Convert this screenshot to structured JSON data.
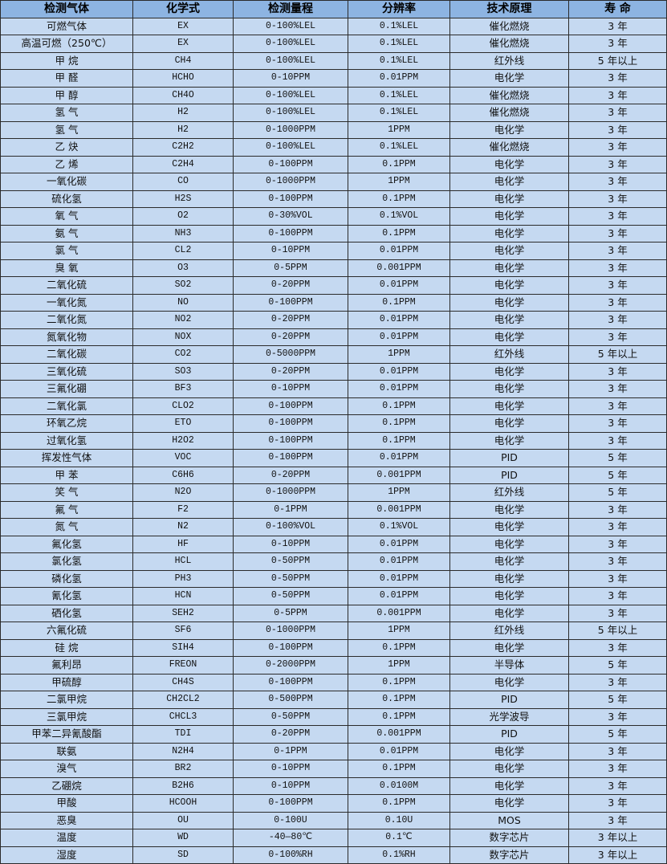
{
  "colors": {
    "header_bg": "#8db4e2",
    "row_bg": "#c5d9f1",
    "border": "#2b2b2b"
  },
  "headers": [
    "检测气体",
    "化学式",
    "检测量程",
    "分辨率",
    "技术原理",
    "寿 命"
  ],
  "rows": [
    [
      "可燃气体",
      "EX",
      "0-100%LEL",
      "0.1%LEL",
      "催化燃烧",
      "3 年"
    ],
    [
      "高温可燃（250℃）",
      "EX",
      "0-100%LEL",
      "0.1%LEL",
      "催化燃烧",
      "3 年"
    ],
    [
      "甲 烷",
      "CH4",
      "0-100%LEL",
      "0.1%LEL",
      "红外线",
      "5 年以上"
    ],
    [
      "甲 醛",
      "HCHO",
      "0-10PPM",
      "0.01PPM",
      "电化学",
      "3 年"
    ],
    [
      "甲 醇",
      "CH4O",
      "0-100%LEL",
      "0.1%LEL",
      "催化燃烧",
      "3 年"
    ],
    [
      "氢 气",
      "H2",
      "0-100%LEL",
      "0.1%LEL",
      "催化燃烧",
      "3 年"
    ],
    [
      "氢 气",
      "H2",
      "0-1000PPM",
      "1PPM",
      "电化学",
      "3 年"
    ],
    [
      "乙 炔",
      "C2H2",
      "0-100%LEL",
      "0.1%LEL",
      "催化燃烧",
      "3 年"
    ],
    [
      "乙 烯",
      "C2H4",
      "0-100PPM",
      "0.1PPM",
      "电化学",
      "3 年"
    ],
    [
      "一氧化碳",
      "CO",
      "0-1000PPM",
      "1PPM",
      "电化学",
      "3 年"
    ],
    [
      "硫化氢",
      "H2S",
      "0-100PPM",
      "0.1PPM",
      "电化学",
      "3 年"
    ],
    [
      "氧 气",
      "O2",
      "0-30%VOL",
      "0.1%VOL",
      "电化学",
      "3 年"
    ],
    [
      "氨 气",
      "NH3",
      "0-100PPM",
      "0.1PPM",
      "电化学",
      "3 年"
    ],
    [
      "氯 气",
      "CL2",
      "0-10PPM",
      "0.01PPM",
      "电化学",
      "3 年"
    ],
    [
      "臭 氧",
      "O3",
      "0-5PPM",
      "0.001PPM",
      "电化学",
      "3 年"
    ],
    [
      "二氧化硫",
      "SO2",
      "0-20PPM",
      "0.01PPM",
      "电化学",
      "3 年"
    ],
    [
      "一氧化氮",
      "NO",
      "0-100PPM",
      "0.1PPM",
      "电化学",
      "3 年"
    ],
    [
      "二氧化氮",
      "NO2",
      "0-20PPM",
      "0.01PPM",
      "电化学",
      "3 年"
    ],
    [
      "氮氧化物",
      "NOX",
      "0-20PPM",
      "0.01PPM",
      "电化学",
      "3 年"
    ],
    [
      "二氧化碳",
      "CO2",
      "0-5000PPM",
      "1PPM",
      "红外线",
      "5 年以上"
    ],
    [
      "三氧化硫",
      "SO3",
      "0-20PPM",
      "0.01PPM",
      "电化学",
      "3 年"
    ],
    [
      "三氟化硼",
      "BF3",
      "0-10PPM",
      "0.01PPM",
      "电化学",
      "3 年"
    ],
    [
      "二氧化氯",
      "CLO2",
      "0-100PPM",
      "0.1PPM",
      "电化学",
      "3 年"
    ],
    [
      "环氧乙烷",
      "ETO",
      "0-100PPM",
      "0.1PPM",
      "电化学",
      "3 年"
    ],
    [
      "过氧化氢",
      "H2O2",
      "0-100PPM",
      "0.1PPM",
      "电化学",
      "3 年"
    ],
    [
      "挥发性气体",
      "VOC",
      "0-100PPM",
      "0.01PPM",
      "PID",
      "5 年"
    ],
    [
      "甲 苯",
      "C6H6",
      "0-20PPM",
      "0.001PPM",
      "PID",
      "5 年"
    ],
    [
      "笑 气",
      "N2O",
      "0-1000PPM",
      "1PPM",
      "红外线",
      "5 年"
    ],
    [
      "氟 气",
      "F2",
      "0-1PPM",
      "0.001PPM",
      "电化学",
      "3 年"
    ],
    [
      "氮 气",
      "N2",
      "0-100%VOL",
      "0.1%VOL",
      "电化学",
      "3 年"
    ],
    [
      "氟化氢",
      "HF",
      "0-10PPM",
      "0.01PPM",
      "电化学",
      "3 年"
    ],
    [
      "氯化氢",
      "HCL",
      "0-50PPM",
      "0.01PPM",
      "电化学",
      "3 年"
    ],
    [
      "磷化氢",
      "PH3",
      "0-50PPM",
      "0.01PPM",
      "电化学",
      "3 年"
    ],
    [
      "氰化氢",
      "HCN",
      "0-50PPM",
      "0.01PPM",
      "电化学",
      "3 年"
    ],
    [
      "硒化氢",
      "SEH2",
      "0-5PPM",
      "0.001PPM",
      "电化学",
      "3 年"
    ],
    [
      "六氟化硫",
      "SF6",
      "0-1000PPM",
      "1PPM",
      "红外线",
      "5 年以上"
    ],
    [
      "硅 烷",
      "SIH4",
      "0-100PPM",
      "0.1PPM",
      "电化学",
      "3 年"
    ],
    [
      "氟利昂",
      "FREON",
      "0-2000PPM",
      "1PPM",
      "半导体",
      "5 年"
    ],
    [
      "甲硫醇",
      "CH4S",
      "0-100PPM",
      "0.1PPM",
      "电化学",
      "3 年"
    ],
    [
      "二氯甲烷",
      "CH2CL2",
      "0-500PPM",
      "0.1PPM",
      "PID",
      "5 年"
    ],
    [
      "三氯甲烷",
      "CHCL3",
      "0-50PPM",
      "0.1PPM",
      "光学波导",
      "3 年"
    ],
    [
      "甲苯二异氰酸酯",
      "TDI",
      "0-20PPM",
      "0.001PPM",
      "PID",
      "5 年"
    ],
    [
      "联氨",
      "N2H4",
      "0-1PPM",
      "0.01PPM",
      "电化学",
      "3 年"
    ],
    [
      "溴气",
      "BR2",
      "0-10PPM",
      "0.1PPM",
      "电化学",
      "3 年"
    ],
    [
      "乙硼烷",
      "B2H6",
      "0-10PPM",
      "0.0100M",
      "电化学",
      "3 年"
    ],
    [
      "甲酸",
      "HCOOH",
      "0-100PPM",
      "0.1PPM",
      "电化学",
      "3 年"
    ],
    [
      "恶臭",
      "OU",
      "0-100U",
      "0.10U",
      "MOS",
      "3 年"
    ],
    [
      "温度",
      "WD",
      "-40—80℃",
      "0.1℃",
      "数字芯片",
      "3 年以上"
    ],
    [
      "湿度",
      "SD",
      "0-100%RH",
      "0.1%RH",
      "数字芯片",
      "3 年以上"
    ]
  ]
}
